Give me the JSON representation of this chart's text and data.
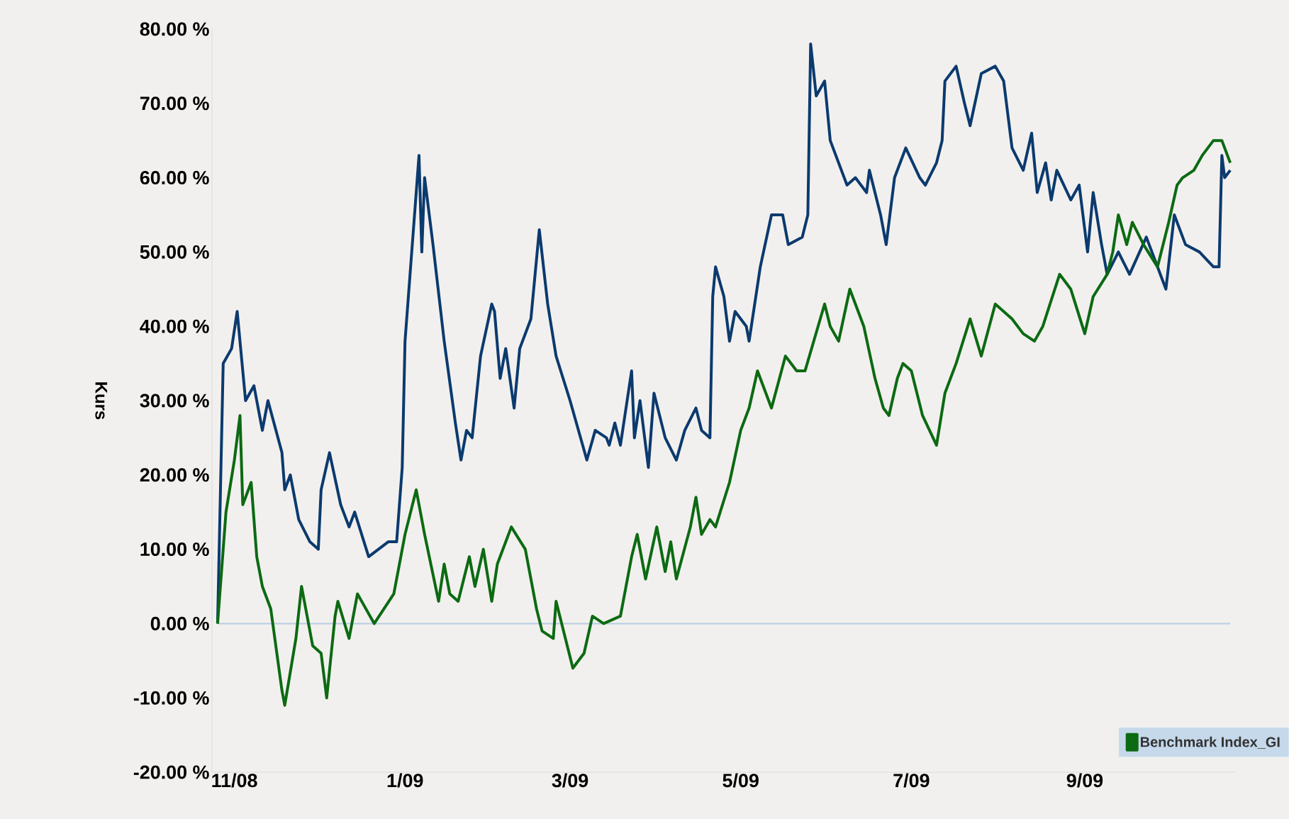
{
  "chart_data": {
    "type": "line",
    "ylabel": "Kurs",
    "xlim": [
      "2008-10-24",
      "2009-10-25"
    ],
    "ylim": [
      -20,
      80
    ],
    "xticks": [
      {
        "value": "2008-11-01",
        "label": "11/08"
      },
      {
        "value": "2009-01-01",
        "label": "1/09"
      },
      {
        "value": "2009-03-01",
        "label": "3/09"
      },
      {
        "value": "2009-05-01",
        "label": "5/09"
      },
      {
        "value": "2009-07-01",
        "label": "7/09"
      },
      {
        "value": "2009-09-01",
        "label": "9/09"
      }
    ],
    "yticks": [
      {
        "value": -20,
        "label": "-20.00 %"
      },
      {
        "value": -10,
        "label": "-10.00 %"
      },
      {
        "value": 0,
        "label": "0.00 %"
      },
      {
        "value": 10,
        "label": "10.00 %"
      },
      {
        "value": 20,
        "label": "20.00 %"
      },
      {
        "value": 30,
        "label": "30.00 %"
      },
      {
        "value": 40,
        "label": "40.00 %"
      },
      {
        "value": 50,
        "label": "50.00 %"
      },
      {
        "value": 60,
        "label": "60.00 %"
      },
      {
        "value": 70,
        "label": "70.00 %"
      },
      {
        "value": 80,
        "label": "80.00 %"
      }
    ],
    "legend": "bottom right",
    "ref_lines": [
      {
        "axis": "y",
        "value": 0,
        "color": "#b7cde3"
      }
    ],
    "series": [
      {
        "color": "#0b3a6e",
        "x": [
          "2008-10-26",
          "2008-10-28",
          "2008-10-31",
          "2008-11-02",
          "2008-11-05",
          "2008-11-08",
          "2008-11-11",
          "2008-11-13",
          "2008-11-18",
          "2008-11-19",
          "2008-11-21",
          "2008-11-24",
          "2008-11-28",
          "2008-12-01",
          "2008-12-02",
          "2008-12-05",
          "2008-12-09",
          "2008-12-12",
          "2008-12-14",
          "2008-12-19",
          "2008-12-26",
          "2008-12-29",
          "2008-12-31",
          "2009-01-01",
          "2009-01-03",
          "2009-01-06",
          "2009-01-07",
          "2009-01-08",
          "2009-01-11",
          "2009-01-15",
          "2009-01-19",
          "2009-01-21",
          "2009-01-23",
          "2009-01-25",
          "2009-01-28",
          "2009-02-01",
          "2009-02-02",
          "2009-02-04",
          "2009-02-06",
          "2009-02-09",
          "2009-02-11",
          "2009-02-15",
          "2009-02-18",
          "2009-02-21",
          "2009-02-24",
          "2009-03-01",
          "2009-03-04",
          "2009-03-07",
          "2009-03-10",
          "2009-03-14",
          "2009-03-15",
          "2009-03-17",
          "2009-03-19",
          "2009-03-23",
          "2009-03-24",
          "2009-03-26",
          "2009-03-29",
          "2009-03-31",
          "2009-04-04",
          "2009-04-08",
          "2009-04-11",
          "2009-04-15",
          "2009-04-17",
          "2009-04-20",
          "2009-04-21",
          "2009-04-22",
          "2009-04-25",
          "2009-04-27",
          "2009-04-29",
          "2009-05-03",
          "2009-05-04",
          "2009-05-08",
          "2009-05-12",
          "2009-05-16",
          "2009-05-18",
          "2009-05-23",
          "2009-05-25",
          "2009-05-26",
          "2009-05-28",
          "2009-05-31",
          "2009-06-02",
          "2009-06-08",
          "2009-06-11",
          "2009-06-15",
          "2009-06-16",
          "2009-06-20",
          "2009-06-22",
          "2009-06-25",
          "2009-06-29",
          "2009-07-04",
          "2009-07-06",
          "2009-07-10",
          "2009-07-12",
          "2009-07-13",
          "2009-07-17",
          "2009-07-20",
          "2009-07-22",
          "2009-07-26",
          "2009-07-31",
          "2009-08-03",
          "2009-08-06",
          "2009-08-10",
          "2009-08-13",
          "2009-08-15",
          "2009-08-18",
          "2009-08-20",
          "2009-08-22",
          "2009-08-27",
          "2009-08-30",
          "2009-09-02",
          "2009-09-04",
          "2009-09-07",
          "2009-09-09",
          "2009-09-13",
          "2009-09-17",
          "2009-09-23",
          "2009-09-30",
          "2009-10-03",
          "2009-10-07",
          "2009-10-12",
          "2009-10-17",
          "2009-10-19",
          "2009-10-20",
          "2009-10-21",
          "2009-10-23"
        ],
        "values": [
          0,
          35,
          37,
          42,
          30,
          32,
          26,
          30,
          23,
          18,
          20,
          14,
          11,
          10,
          18,
          23,
          16,
          13,
          15,
          9,
          11,
          11,
          21,
          38,
          48,
          63,
          50,
          60,
          51,
          38,
          27,
          22,
          26,
          25,
          36,
          43,
          42,
          33,
          37,
          29,
          37,
          41,
          53,
          43,
          36,
          30,
          26,
          22,
          26,
          25,
          24,
          27,
          24,
          34,
          25,
          30,
          21,
          31,
          25,
          22,
          26,
          29,
          26,
          25,
          44,
          48,
          44,
          38,
          42,
          40,
          38,
          48,
          55,
          55,
          51,
          52,
          55,
          78,
          71,
          73,
          65,
          59,
          60,
          58,
          61,
          55,
          51,
          60,
          64,
          60,
          59,
          62,
          65,
          73,
          75,
          70,
          67,
          74,
          75,
          73,
          64,
          61,
          66,
          58,
          62,
          57,
          61,
          57,
          59,
          50,
          58,
          51,
          47,
          50,
          47,
          52,
          45,
          55,
          51,
          50,
          48,
          48,
          63,
          60,
          61
        ]
      },
      {
        "name": "Benchmark Index_GI",
        "color": "#0c6a12",
        "x": [
          "2008-10-26",
          "2008-10-29",
          "2008-11-01",
          "2008-11-03",
          "2008-11-04",
          "2008-11-07",
          "2008-11-09",
          "2008-11-11",
          "2008-11-14",
          "2008-11-18",
          "2008-11-19",
          "2008-11-23",
          "2008-11-25",
          "2008-11-29",
          "2008-12-02",
          "2008-12-04",
          "2008-12-07",
          "2008-12-08",
          "2008-12-12",
          "2008-12-15",
          "2008-12-21",
          "2008-12-28",
          "2009-01-01",
          "2009-01-05",
          "2009-01-08",
          "2009-01-13",
          "2009-01-15",
          "2009-01-17",
          "2009-01-20",
          "2009-01-24",
          "2009-01-26",
          "2009-01-29",
          "2009-02-01",
          "2009-02-03",
          "2009-02-08",
          "2009-02-13",
          "2009-02-17",
          "2009-02-19",
          "2009-02-23",
          "2009-02-24",
          "2009-03-02",
          "2009-03-06",
          "2009-03-09",
          "2009-03-13",
          "2009-03-19",
          "2009-03-23",
          "2009-03-25",
          "2009-03-28",
          "2009-04-01",
          "2009-04-04",
          "2009-04-06",
          "2009-04-08",
          "2009-04-13",
          "2009-04-15",
          "2009-04-17",
          "2009-04-20",
          "2009-04-22",
          "2009-04-27",
          "2009-05-01",
          "2009-05-04",
          "2009-05-07",
          "2009-05-12",
          "2009-05-17",
          "2009-05-21",
          "2009-05-24",
          "2009-05-31",
          "2009-06-02",
          "2009-06-05",
          "2009-06-09",
          "2009-06-14",
          "2009-06-18",
          "2009-06-21",
          "2009-06-23",
          "2009-06-26",
          "2009-06-28",
          "2009-07-01",
          "2009-07-05",
          "2009-07-10",
          "2009-07-13",
          "2009-07-17",
          "2009-07-22",
          "2009-07-26",
          "2009-07-31",
          "2009-08-06",
          "2009-08-10",
          "2009-08-14",
          "2009-08-17",
          "2009-08-23",
          "2009-08-27",
          "2009-09-01",
          "2009-09-04",
          "2009-09-09",
          "2009-09-11",
          "2009-09-13",
          "2009-09-16",
          "2009-09-18",
          "2009-09-22",
          "2009-09-27",
          "2009-10-01",
          "2009-10-04",
          "2009-10-06",
          "2009-10-10",
          "2009-10-13",
          "2009-10-17",
          "2009-10-20",
          "2009-10-23"
        ],
        "values": [
          0,
          15,
          22,
          28,
          16,
          19,
          9,
          5,
          2,
          -9,
          -11,
          -2,
          5,
          -3,
          -4,
          -10,
          1,
          3,
          -2,
          4,
          0,
          4,
          12,
          18,
          12,
          3,
          8,
          4,
          3,
          9,
          5,
          10,
          3,
          8,
          13,
          10,
          2,
          -1,
          -2,
          3,
          -6,
          -4,
          1,
          0,
          1,
          9,
          12,
          6,
          13,
          7,
          11,
          6,
          13,
          17,
          12,
          14,
          13,
          19,
          26,
          29,
          34,
          29,
          36,
          34,
          34,
          43,
          40,
          38,
          45,
          40,
          33,
          29,
          28,
          33,
          35,
          34,
          28,
          24,
          31,
          35,
          41,
          36,
          43,
          41,
          39,
          38,
          40,
          47,
          45,
          39,
          44,
          47,
          50,
          55,
          51,
          54,
          51,
          48,
          54,
          59,
          60,
          61,
          63,
          65,
          65,
          62
        ]
      }
    ]
  }
}
